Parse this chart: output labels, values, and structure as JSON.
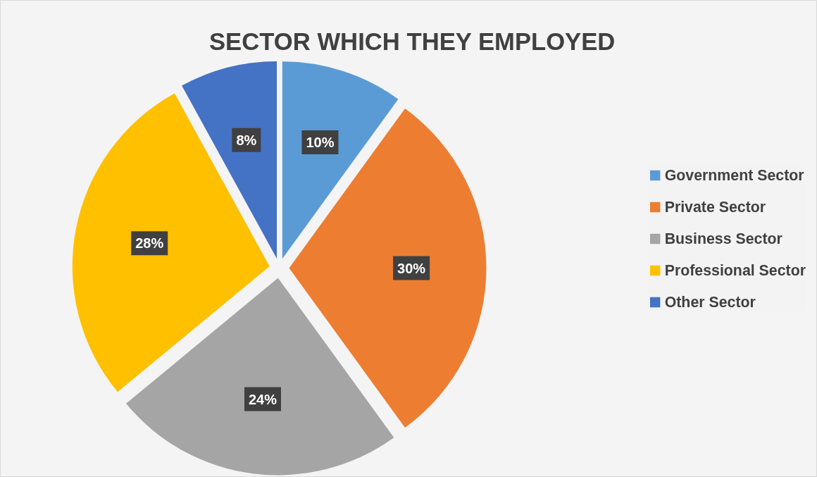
{
  "chart_data": {
    "type": "pie",
    "title": "SECTOR WHICH THEY EMPLOYED",
    "categories": [
      "Government Sector",
      "Private Sector",
      "Business Sector",
      "Professional Sector",
      "Other Sector"
    ],
    "values": [
      10,
      30,
      24,
      28,
      8
    ],
    "colors": [
      "#5b9bd5",
      "#ed7d31",
      "#a5a5a5",
      "#ffc000",
      "#4472c4"
    ],
    "value_labels": [
      "10%",
      "30%",
      "24%",
      "28%",
      "8%"
    ],
    "legend": "right"
  }
}
